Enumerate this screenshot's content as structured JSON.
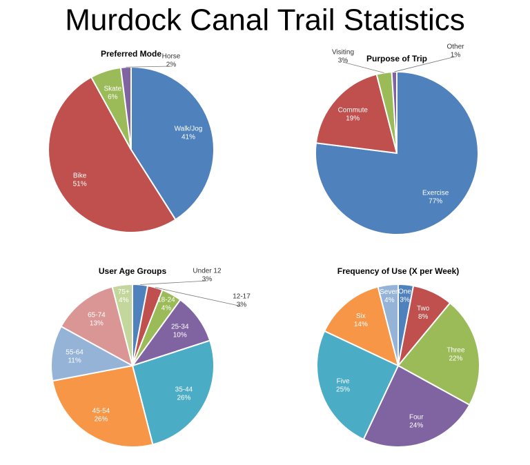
{
  "title": "Murdock Canal Trail Statistics",
  "chart_data": [
    {
      "type": "pie",
      "title": "Preferred Mode",
      "categories": [
        "Walk/Jog",
        "Bike",
        "Skate",
        "Horse"
      ],
      "values": [
        41,
        51,
        6,
        2
      ],
      "value_labels": [
        "41%",
        "51%",
        "6%",
        "2%"
      ],
      "colors": [
        "#4f81bd",
        "#c0504d",
        "#9bbb59",
        "#8064a2"
      ]
    },
    {
      "type": "pie",
      "title": "Purpose of Trip",
      "categories": [
        "Exercise",
        "Commute",
        "Visiting",
        "Other"
      ],
      "values": [
        77,
        19,
        3,
        1
      ],
      "value_labels": [
        "77%",
        "19%",
        "3%",
        "1%"
      ],
      "colors": [
        "#4f81bd",
        "#c0504d",
        "#9bbb59",
        "#8064a2"
      ]
    },
    {
      "type": "pie",
      "title": "User Age Groups",
      "categories": [
        "Under 12",
        "12-17",
        "18-24",
        "25-34",
        "35-44",
        "45-54",
        "55-64",
        "65-74",
        "75+"
      ],
      "values": [
        3,
        3,
        4,
        10,
        26,
        26,
        11,
        13,
        4
      ],
      "value_labels": [
        "3%",
        "3%",
        "4%",
        "10%",
        "26%",
        "26%",
        "11%",
        "13%",
        "4%"
      ],
      "colors": [
        "#4f81bd",
        "#c0504d",
        "#9bbb59",
        "#8064a2",
        "#4bacc6",
        "#f79646",
        "#95b3d7",
        "#d99694",
        "#c3d69b"
      ]
    },
    {
      "type": "pie",
      "title": "Frequency of Use (X per Week)",
      "categories": [
        "One",
        "Two",
        "Three",
        "Four",
        "Five",
        "Six",
        "Seven"
      ],
      "values": [
        3,
        8,
        22,
        24,
        25,
        14,
        4
      ],
      "value_labels": [
        "3%",
        "8%",
        "22%",
        "24%",
        "25%",
        "14%",
        "4%"
      ],
      "colors": [
        "#4f81bd",
        "#c0504d",
        "#9bbb59",
        "#8064a2",
        "#4bacc6",
        "#f79646",
        "#95b3d7"
      ]
    }
  ]
}
